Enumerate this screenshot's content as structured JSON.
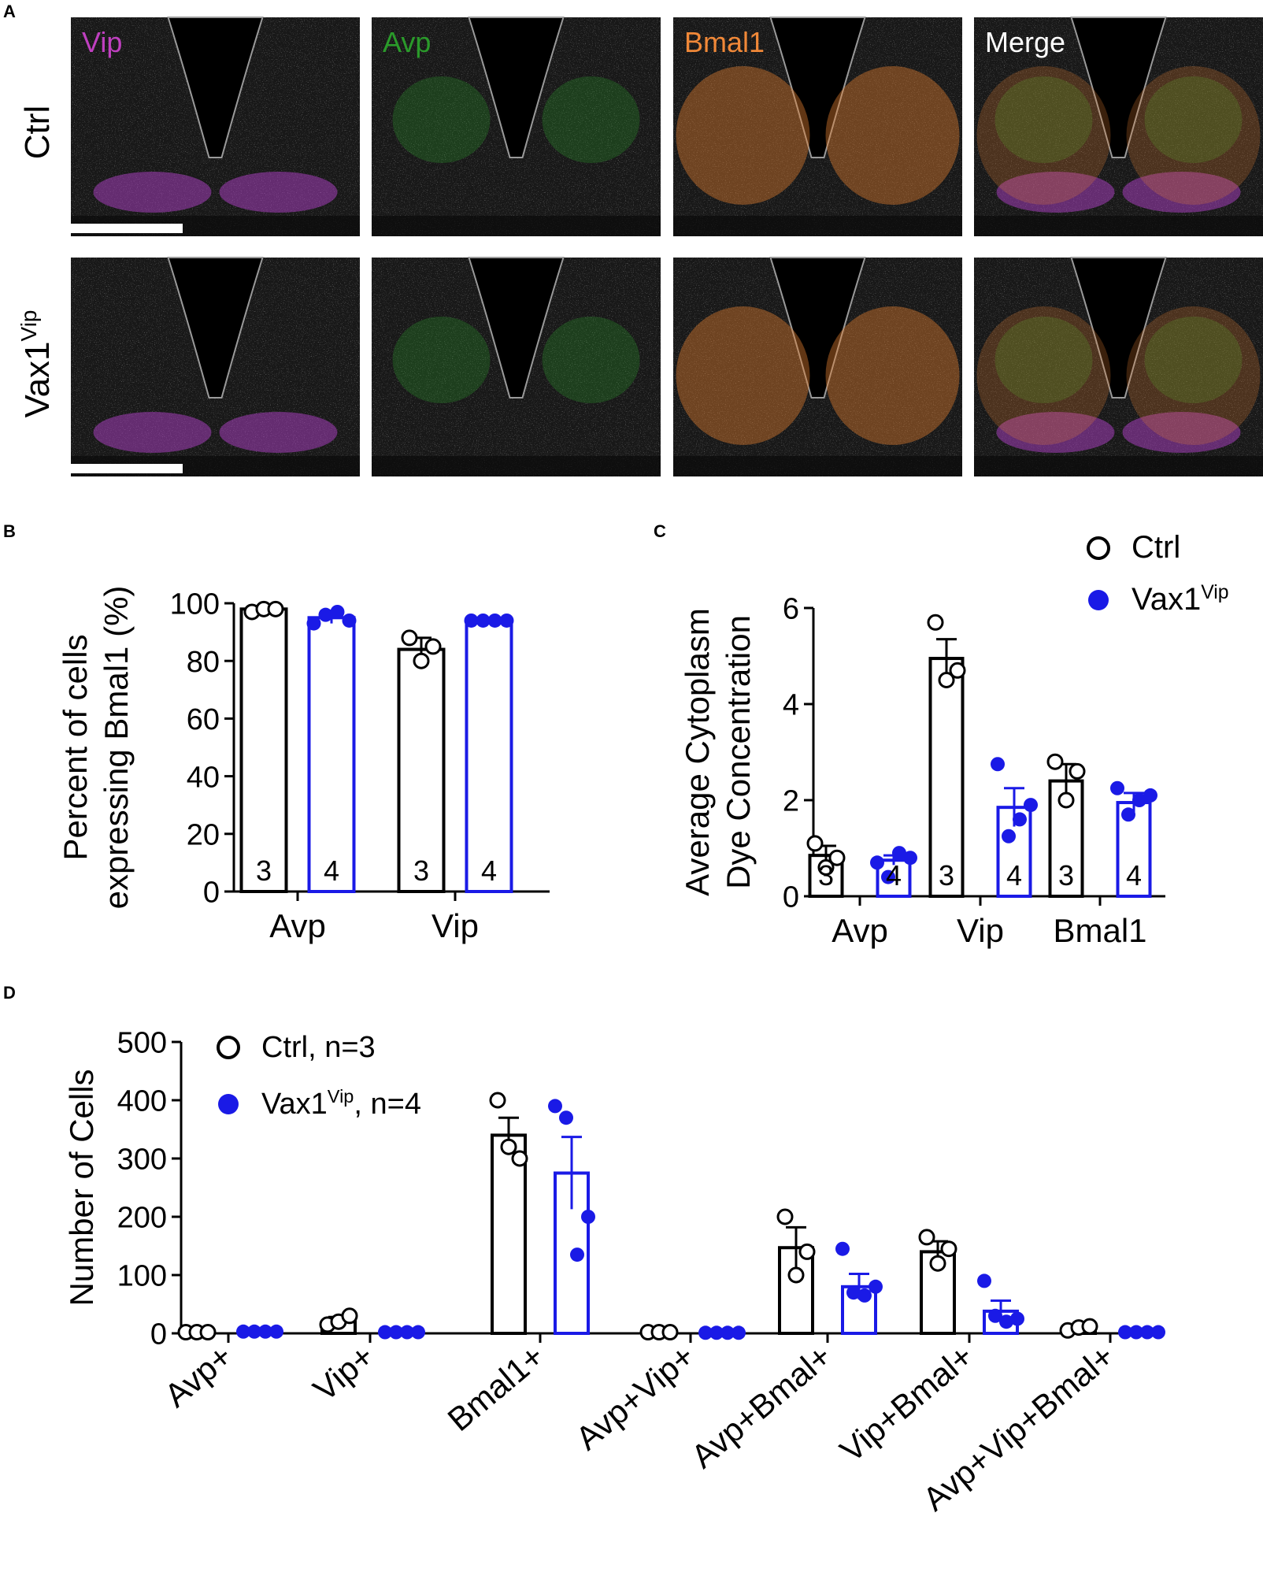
{
  "panel_letters": {
    "a": "A",
    "b": "B",
    "c": "C",
    "d": "D"
  },
  "panel_a": {
    "columns": [
      "Vip",
      "Avp",
      "Bmal1",
      "Merge"
    ],
    "column_colors": [
      "#c040c0",
      "#2a9a2a",
      "#f08838",
      "#ffffff"
    ],
    "rows": [
      {
        "label": "Ctrl",
        "superscript": ""
      },
      {
        "label": "Vax1",
        "superscript": "Vip"
      }
    ]
  },
  "colors": {
    "ctrl": "#000000",
    "vax": "#1a1ae6"
  },
  "chart_data": [
    {
      "panel": "B",
      "type": "bar",
      "categories": [
        "Avp",
        "Vip"
      ],
      "ylabel_lines": [
        "Percent of cells",
        "expressing Bmal1 (%)"
      ],
      "ylim": [
        0,
        100
      ],
      "yticks": [
        0,
        20,
        40,
        60,
        80,
        100
      ],
      "series": [
        {
          "key": "ctrl",
          "means": [
            98,
            84
          ],
          "sem": [
            1,
            4
          ],
          "points": [
            [
              97,
              98,
              98
            ],
            [
              88,
              80,
              85
            ]
          ],
          "n": [
            3,
            3
          ]
        },
        {
          "key": "vax",
          "means": [
            95,
            94
          ],
          "sem": [
            2,
            0.5
          ],
          "points": [
            [
              93,
              96,
              97,
              94
            ],
            [
              94,
              94,
              94,
              94
            ]
          ],
          "n": [
            4,
            4
          ]
        }
      ]
    },
    {
      "panel": "C",
      "type": "bar",
      "categories": [
        "Avp",
        "Vip",
        "Bmal1"
      ],
      "ylabel_lines": [
        "Average Cytoplasm",
        "Dye Concentration"
      ],
      "ylim": [
        0,
        6
      ],
      "yticks": [
        0,
        2,
        4,
        6
      ],
      "legend": [
        {
          "key": "ctrl",
          "label": "Ctrl",
          "superscript": ""
        },
        {
          "key": "vax",
          "label": "Vax1",
          "superscript": "Vip"
        }
      ],
      "series": [
        {
          "key": "ctrl",
          "means": [
            0.85,
            4.95,
            2.4
          ],
          "sem": [
            0.2,
            0.4,
            0.35
          ],
          "points": [
            [
              1.1,
              0.6,
              0.8
            ],
            [
              5.7,
              4.5,
              4.7
            ],
            [
              2.8,
              2.0,
              2.6
            ]
          ],
          "n": [
            3,
            3,
            3
          ]
        },
        {
          "key": "vax",
          "means": [
            0.75,
            1.85,
            1.95
          ],
          "sem": [
            0.1,
            0.4,
            0.2
          ],
          "points": [
            [
              0.7,
              0.4,
              0.9,
              0.8
            ],
            [
              2.75,
              1.25,
              1.6,
              1.9
            ],
            [
              2.25,
              1.7,
              2.0,
              2.1
            ]
          ],
          "n": [
            4,
            4,
            4
          ]
        }
      ]
    },
    {
      "panel": "D",
      "type": "bar",
      "categories": [
        "Avp+",
        "Vip+",
        "Bmal1+",
        "Avp+Vip+",
        "Avp+Bmal+",
        "Vip+Bmal+",
        "Avp+Vip+Bmal+"
      ],
      "ylabel": "Number of Cells",
      "ylim": [
        0,
        500
      ],
      "yticks": [
        0,
        100,
        200,
        300,
        400,
        500
      ],
      "legend": [
        {
          "key": "ctrl",
          "label": "Ctrl, n=3",
          "superscript": ""
        },
        {
          "key": "vax",
          "label": "Vax1",
          "superscript": "Vip",
          "suffix": ", n=4"
        }
      ],
      "series": [
        {
          "key": "ctrl",
          "means": [
            2,
            20,
            340,
            2,
            147,
            140,
            8
          ],
          "sem": [
            1,
            8,
            30,
            1,
            35,
            18,
            4
          ],
          "points": [
            [
              2,
              2,
              2
            ],
            [
              15,
              20,
              30
            ],
            [
              400,
              320,
              300
            ],
            [
              2,
              2,
              2
            ],
            [
              200,
              100,
              140
            ],
            [
              165,
              120,
              145
            ],
            [
              5,
              10,
              12
            ]
          ]
        },
        {
          "key": "vax",
          "means": [
            3,
            2,
            275,
            1,
            80,
            38,
            2
          ],
          "sem": [
            1,
            1,
            62,
            0.5,
            22,
            18,
            1
          ],
          "points": [
            [
              3,
              3,
              3,
              3
            ],
            [
              2,
              2,
              2,
              2
            ],
            [
              390,
              370,
              135,
              200
            ],
            [
              1,
              1,
              1,
              1
            ],
            [
              145,
              70,
              65,
              80
            ],
            [
              90,
              30,
              20,
              25
            ],
            [
              2,
              2,
              2,
              2
            ]
          ]
        }
      ]
    }
  ]
}
